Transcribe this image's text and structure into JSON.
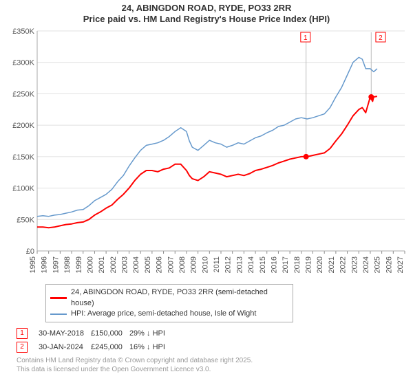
{
  "title": {
    "line1": "24, ABINGDON ROAD, RYDE, PO33 2RR",
    "line2": "Price paid vs. HM Land Registry's House Price Index (HPI)",
    "fontsize": 13,
    "fontweight": "bold",
    "color": "#333333"
  },
  "chart": {
    "type": "line",
    "background_color": "#ffffff",
    "plot_border_color": "#aaaaaa",
    "grid_color": "#e0e0e0",
    "axis_font_size": 11,
    "axis_font_color": "#555555",
    "x": {
      "lim": [
        1995,
        2027
      ],
      "ticks": [
        1995,
        1996,
        1997,
        1998,
        1999,
        2000,
        2001,
        2002,
        2003,
        2004,
        2005,
        2006,
        2007,
        2008,
        2009,
        2010,
        2011,
        2012,
        2013,
        2014,
        2015,
        2016,
        2017,
        2018,
        2019,
        2020,
        2021,
        2022,
        2023,
        2024,
        2025,
        2026,
        2027
      ],
      "tick_labels": [
        "1995",
        "1996",
        "1997",
        "1998",
        "1999",
        "2000",
        "2001",
        "2002",
        "2003",
        "2004",
        "2005",
        "2006",
        "2007",
        "2008",
        "2009",
        "2010",
        "2011",
        "2012",
        "2013",
        "2014",
        "2015",
        "2016",
        "2017",
        "2018",
        "2019",
        "2020",
        "2021",
        "2022",
        "2023",
        "2024",
        "2025",
        "2026",
        "2027"
      ],
      "tick_rotation": -90
    },
    "y": {
      "lim": [
        0,
        350
      ],
      "ticks": [
        0,
        50,
        100,
        150,
        200,
        250,
        300,
        350
      ],
      "tick_labels": [
        "£0",
        "£50K",
        "£100K",
        "£150K",
        "£200K",
        "£250K",
        "£300K",
        "£350K"
      ]
    },
    "series": [
      {
        "name": "hpi",
        "label": "HPI: Average price, semi-detached house, Isle of Wight",
        "color": "#6699cc",
        "line_width": 1.5,
        "data": [
          [
            1995,
            55
          ],
          [
            1995.5,
            56
          ],
          [
            1996,
            55
          ],
          [
            1996.5,
            57
          ],
          [
            1997,
            58
          ],
          [
            1997.5,
            60
          ],
          [
            1998,
            62
          ],
          [
            1998.5,
            65
          ],
          [
            1999,
            66
          ],
          [
            1999.5,
            72
          ],
          [
            2000,
            80
          ],
          [
            2000.5,
            85
          ],
          [
            2001,
            90
          ],
          [
            2001.5,
            98
          ],
          [
            2002,
            110
          ],
          [
            2002.5,
            120
          ],
          [
            2003,
            135
          ],
          [
            2003.5,
            148
          ],
          [
            2004,
            160
          ],
          [
            2004.5,
            168
          ],
          [
            2005,
            170
          ],
          [
            2005.5,
            172
          ],
          [
            2006,
            176
          ],
          [
            2006.5,
            182
          ],
          [
            2007,
            190
          ],
          [
            2007.5,
            196
          ],
          [
            2008,
            190
          ],
          [
            2008.25,
            175
          ],
          [
            2008.5,
            165
          ],
          [
            2009,
            160
          ],
          [
            2009.5,
            168
          ],
          [
            2010,
            176
          ],
          [
            2010.5,
            172
          ],
          [
            2011,
            170
          ],
          [
            2011.5,
            165
          ],
          [
            2012,
            168
          ],
          [
            2012.5,
            172
          ],
          [
            2013,
            170
          ],
          [
            2013.5,
            175
          ],
          [
            2014,
            180
          ],
          [
            2014.5,
            183
          ],
          [
            2015,
            188
          ],
          [
            2015.5,
            192
          ],
          [
            2016,
            198
          ],
          [
            2016.5,
            200
          ],
          [
            2017,
            205
          ],
          [
            2017.5,
            210
          ],
          [
            2018,
            212
          ],
          [
            2018.5,
            210
          ],
          [
            2019,
            212
          ],
          [
            2019.5,
            215
          ],
          [
            2020,
            218
          ],
          [
            2020.5,
            228
          ],
          [
            2021,
            245
          ],
          [
            2021.5,
            260
          ],
          [
            2022,
            280
          ],
          [
            2022.5,
            300
          ],
          [
            2023,
            308
          ],
          [
            2023.3,
            305
          ],
          [
            2023.6,
            290
          ],
          [
            2024,
            290
          ],
          [
            2024.3,
            285
          ],
          [
            2024.6,
            290
          ]
        ]
      },
      {
        "name": "price_paid",
        "label": "24, ABINGDON ROAD, RYDE, PO33 2RR (semi-detached house)",
        "color": "#ff0000",
        "line_width": 2,
        "data": [
          [
            1995,
            38
          ],
          [
            1995.5,
            38
          ],
          [
            1996,
            37
          ],
          [
            1996.5,
            38
          ],
          [
            1997,
            40
          ],
          [
            1997.5,
            42
          ],
          [
            1998,
            43
          ],
          [
            1998.5,
            45
          ],
          [
            1999,
            46
          ],
          [
            1999.5,
            50
          ],
          [
            2000,
            57
          ],
          [
            2000.5,
            62
          ],
          [
            2001,
            68
          ],
          [
            2001.5,
            73
          ],
          [
            2002,
            82
          ],
          [
            2002.5,
            90
          ],
          [
            2003,
            100
          ],
          [
            2003.5,
            112
          ],
          [
            2004,
            122
          ],
          [
            2004.5,
            128
          ],
          [
            2005,
            128
          ],
          [
            2005.5,
            126
          ],
          [
            2006,
            130
          ],
          [
            2006.5,
            132
          ],
          [
            2007,
            138
          ],
          [
            2007.5,
            138
          ],
          [
            2008,
            128
          ],
          [
            2008.25,
            120
          ],
          [
            2008.5,
            115
          ],
          [
            2009,
            112
          ],
          [
            2009.5,
            118
          ],
          [
            2010,
            126
          ],
          [
            2010.5,
            124
          ],
          [
            2011,
            122
          ],
          [
            2011.5,
            118
          ],
          [
            2012,
            120
          ],
          [
            2012.5,
            122
          ],
          [
            2013,
            120
          ],
          [
            2013.5,
            123
          ],
          [
            2014,
            128
          ],
          [
            2014.5,
            130
          ],
          [
            2015,
            133
          ],
          [
            2015.5,
            136
          ],
          [
            2016,
            140
          ],
          [
            2016.5,
            143
          ],
          [
            2017,
            146
          ],
          [
            2017.5,
            148
          ],
          [
            2018,
            150
          ],
          [
            2018.5,
            150
          ],
          [
            2019,
            152
          ],
          [
            2019.5,
            154
          ],
          [
            2020,
            156
          ],
          [
            2020.5,
            163
          ],
          [
            2021,
            175
          ],
          [
            2021.5,
            186
          ],
          [
            2022,
            200
          ],
          [
            2022.5,
            215
          ],
          [
            2023,
            225
          ],
          [
            2023.3,
            228
          ],
          [
            2023.6,
            220
          ],
          [
            2024,
            245
          ],
          [
            2024.2,
            238
          ],
          [
            2024.3,
            245
          ],
          [
            2024.6,
            246
          ]
        ]
      }
    ],
    "markers": [
      {
        "n": "1",
        "x": 2018.41,
        "y": 150,
        "label_x": 2018.36,
        "label_y_top": true
      },
      {
        "n": "2",
        "x": 2024.08,
        "y": 245,
        "label_x": 2024.9,
        "label_y_top": true
      }
    ],
    "marker_style": {
      "point_color": "#ff0000",
      "point_radius": 4,
      "box_border": "#ff0000",
      "box_text": "#ff0000",
      "connector_color": "#bbbbbb"
    }
  },
  "legend": {
    "border_color": "#aaaaaa",
    "rows": [
      {
        "color": "#ff0000",
        "text": "24, ABINGDON ROAD, RYDE, PO33 2RR (semi-detached house)",
        "thick": 3
      },
      {
        "color": "#6699cc",
        "text": "HPI: Average price, semi-detached house, Isle of Wight",
        "thick": 2
      }
    ]
  },
  "annotations": [
    {
      "n": "1",
      "date": "30-MAY-2018",
      "price": "£150,000",
      "note": "29% ↓ HPI"
    },
    {
      "n": "2",
      "date": "30-JAN-2024",
      "price": "£245,000",
      "note": "16% ↓ HPI"
    }
  ],
  "footer": {
    "line1": "Contains HM Land Registry data © Crown copyright and database right 2025.",
    "line2": "This data is licensed under the Open Government Licence v3.0.",
    "color": "#999999",
    "fontsize": 10
  }
}
